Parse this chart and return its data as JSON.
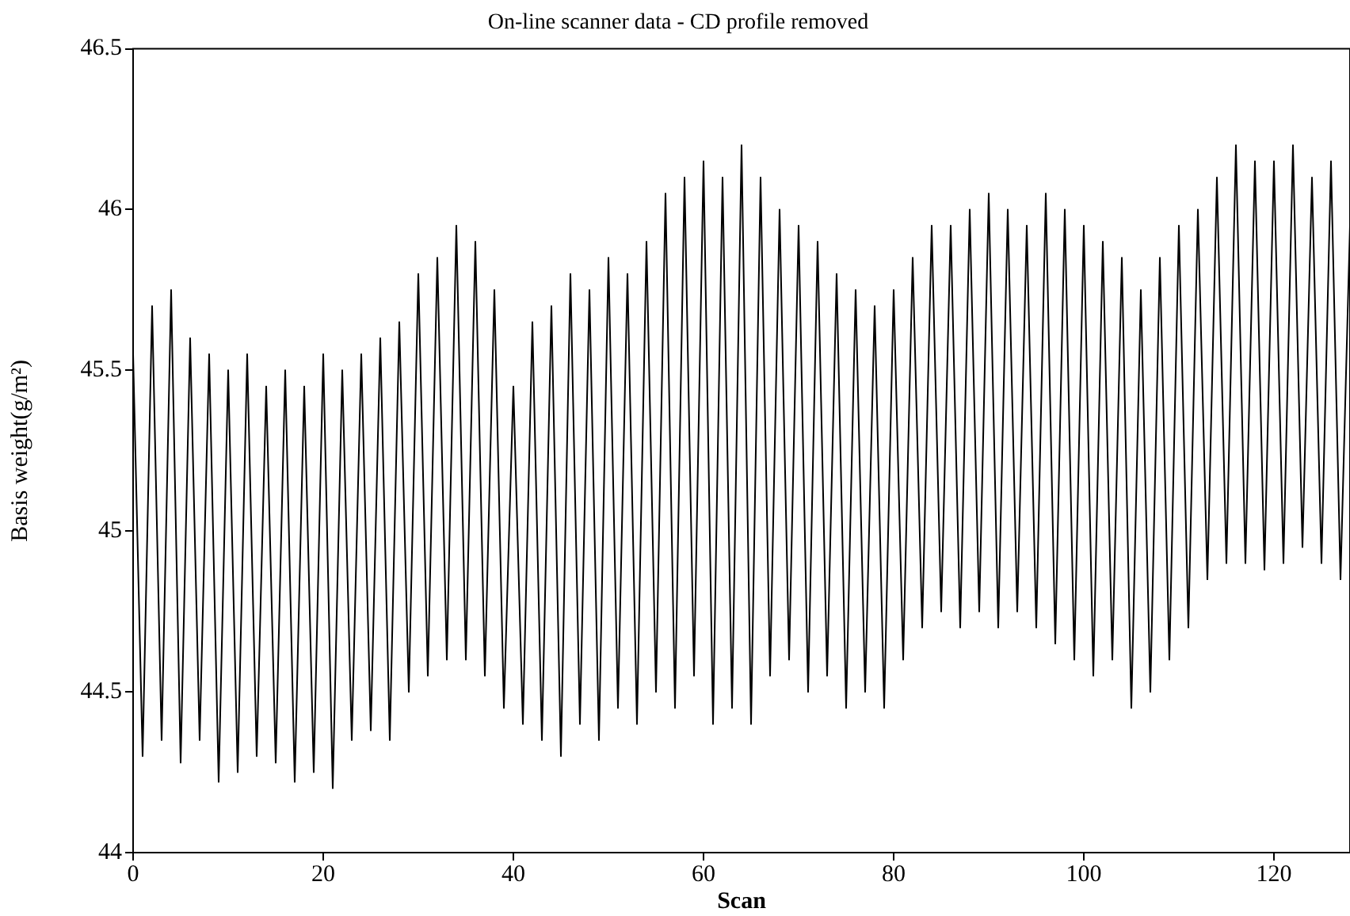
{
  "chart_data": {
    "type": "line",
    "title": "On-line scanner data - CD profile removed",
    "xlabel": "Scan",
    "ylabel": "Basis weight(g/m²)",
    "x": [
      0,
      1,
      2,
      3,
      4,
      5,
      6,
      7,
      8,
      9,
      10,
      11,
      12,
      13,
      14,
      15,
      16,
      17,
      18,
      19,
      20,
      21,
      22,
      23,
      24,
      25,
      26,
      27,
      28,
      29,
      30,
      31,
      32,
      33,
      34,
      35,
      36,
      37,
      38,
      39,
      40,
      41,
      42,
      43,
      44,
      45,
      46,
      47,
      48,
      49,
      50,
      51,
      52,
      53,
      54,
      55,
      56,
      57,
      58,
      59,
      60,
      61,
      62,
      63,
      64,
      65,
      66,
      67,
      68,
      69,
      70,
      71,
      72,
      73,
      74,
      75,
      76,
      77,
      78,
      79,
      80,
      81,
      82,
      83,
      84,
      85,
      86,
      87,
      88,
      89,
      90,
      91,
      92,
      93,
      94,
      95,
      96,
      97,
      98,
      99,
      100,
      101,
      102,
      103,
      104,
      105,
      106,
      107,
      108,
      109,
      110,
      111,
      112,
      113,
      114,
      115,
      116,
      117,
      118,
      119,
      120,
      121,
      122,
      123,
      124,
      125,
      126,
      127,
      128
    ],
    "series": [
      {
        "color": "#000000",
        "values": [
          45.55,
          44.3,
          45.7,
          44.35,
          45.75,
          44.28,
          45.6,
          44.35,
          45.55,
          44.22,
          45.5,
          44.25,
          45.55,
          44.3,
          45.45,
          44.28,
          45.5,
          44.22,
          45.45,
          44.25,
          45.55,
          44.2,
          45.5,
          44.35,
          45.55,
          44.38,
          45.6,
          44.35,
          45.65,
          44.5,
          45.8,
          44.55,
          45.85,
          44.6,
          45.95,
          44.6,
          45.9,
          44.55,
          45.75,
          44.45,
          45.45,
          44.4,
          45.65,
          44.35,
          45.7,
          44.3,
          45.8,
          44.4,
          45.75,
          44.35,
          45.85,
          44.45,
          45.8,
          44.4,
          45.9,
          44.5,
          46.05,
          44.45,
          46.1,
          44.55,
          46.15,
          44.4,
          46.1,
          44.45,
          46.2,
          44.4,
          46.1,
          44.55,
          46.0,
          44.6,
          45.95,
          44.5,
          45.9,
          44.55,
          45.8,
          44.45,
          45.75,
          44.5,
          45.7,
          44.45,
          45.75,
          44.6,
          45.85,
          44.7,
          45.95,
          44.75,
          45.95,
          44.7,
          46.0,
          44.75,
          46.05,
          44.7,
          46.0,
          44.75,
          45.95,
          44.7,
          46.05,
          44.65,
          46.0,
          44.6,
          45.95,
          44.55,
          45.9,
          44.6,
          45.85,
          44.45,
          45.75,
          44.5,
          45.85,
          44.6,
          45.95,
          44.7,
          46.0,
          44.85,
          46.1,
          44.9,
          46.2,
          44.9,
          46.15,
          44.88,
          46.15,
          44.9,
          46.2,
          44.95,
          46.1,
          44.9,
          46.15,
          44.85,
          45.95
        ]
      }
    ],
    "xlim": [
      0,
      128
    ],
    "xticks": [
      0,
      20,
      40,
      60,
      80,
      100,
      120
    ],
    "ylim": [
      44,
      46.5
    ],
    "yticks": [
      44,
      44.5,
      45,
      45.5,
      46,
      46.5
    ],
    "grid": false,
    "legend": false,
    "marker": "none",
    "line_style": "solid"
  }
}
